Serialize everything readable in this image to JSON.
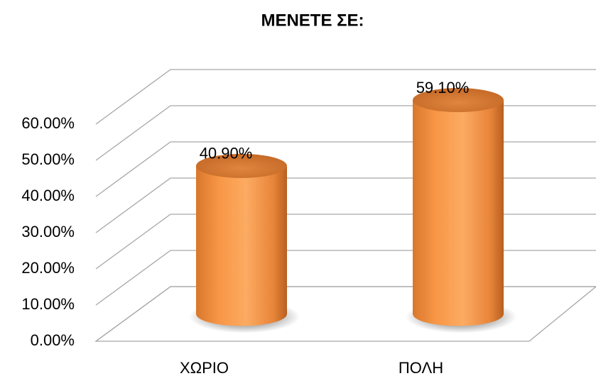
{
  "chart_data": {
    "type": "bar3d",
    "title": "ΜΕΝΕΤΕ ΣΕ:",
    "categories": [
      "ΧΩΡΙΟ",
      "ΠΟΛΗ"
    ],
    "values": [
      40.9,
      59.1
    ],
    "value_labels": [
      "40.90%",
      "59.10%"
    ],
    "color": "#f79646",
    "ylim": [
      0,
      60
    ],
    "yticks": [
      {
        "value": 0,
        "label": "0.00%"
      },
      {
        "value": 10,
        "label": "10.00%"
      },
      {
        "value": 20,
        "label": "20.00%"
      },
      {
        "value": 30,
        "label": "30.00%"
      },
      {
        "value": 40,
        "label": "40.00%"
      },
      {
        "value": 50,
        "label": "50.00%"
      },
      {
        "value": 60,
        "label": "60.00%"
      }
    ],
    "grid": true
  }
}
